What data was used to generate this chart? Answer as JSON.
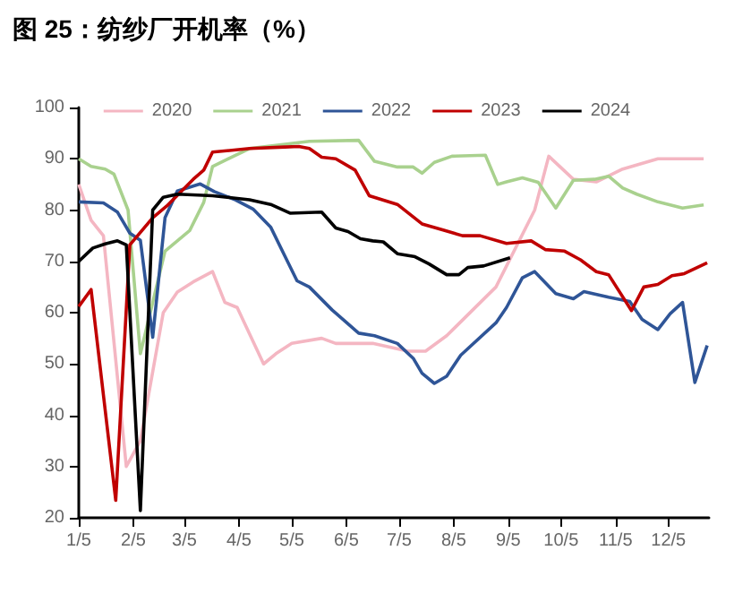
{
  "chart_data": {
    "type": "line",
    "title": "图 25：纺纱厂开机率（%）",
    "legend": "top",
    "marker": "none",
    "xlim": [
      "--01-05",
      "--12-28"
    ],
    "xticks": [
      {
        "value": "--01-05",
        "label": "1/5"
      },
      {
        "value": "--02-05",
        "label": "2/5"
      },
      {
        "value": "--03-05",
        "label": "3/5"
      },
      {
        "value": "--04-05",
        "label": "4/5"
      },
      {
        "value": "--05-05",
        "label": "5/5"
      },
      {
        "value": "--06-05",
        "label": "6/5"
      },
      {
        "value": "--07-05",
        "label": "7/5"
      },
      {
        "value": "--08-05",
        "label": "8/5"
      },
      {
        "value": "--09-05",
        "label": "9/5"
      },
      {
        "value": "--10-05",
        "label": "10/5"
      },
      {
        "value": "--11-05",
        "label": "11/5"
      },
      {
        "value": "--12-05",
        "label": "12/5"
      }
    ],
    "ylim": [
      20,
      100
    ],
    "yticks": [
      20,
      30,
      40,
      50,
      60,
      70,
      80,
      90,
      100
    ],
    "series": [
      {
        "name": "2020",
        "color": "#f4b6c2",
        "x": [
          "--01-05",
          "--01-12",
          "--01-19",
          "--02-01",
          "--02-09",
          "--02-22",
          "--03-01",
          "--03-10",
          "--03-21",
          "--03-28",
          "--04-04",
          "--04-19",
          "--04-26",
          "--05-05",
          "--05-22",
          "--05-30",
          "--06-20",
          "--07-10",
          "--07-20",
          "--08-01",
          "--08-29",
          "--09-20",
          "--09-28",
          "--10-12",
          "--10-25",
          "--11-09",
          "--11-29",
          "--12-25"
        ],
        "values": [
          85,
          78,
          75,
          30,
          35,
          60,
          64,
          66,
          68,
          62,
          61,
          50,
          52,
          54,
          55,
          54,
          54,
          52.5,
          52.5,
          55.5,
          65,
          80,
          90.5,
          86,
          85.5,
          88,
          90,
          90
        ]
      },
      {
        "name": "2021",
        "color": "#a9d18e",
        "x": [
          "--01-05",
          "--01-12",
          "--01-20",
          "--01-25",
          "--02-02",
          "--02-09",
          "--02-23",
          "--03-08",
          "--03-16",
          "--03-21",
          "--04-11",
          "--05-15",
          "--06-12",
          "--06-21",
          "--07-04",
          "--07-13",
          "--07-18",
          "--07-25",
          "--08-04",
          "--08-23",
          "--08-30",
          "--09-04",
          "--09-13",
          "--09-22",
          "--10-02",
          "--10-12",
          "--10-24",
          "--11-01",
          "--11-09",
          "--11-17",
          "--11-29",
          "--12-13",
          "--12-25"
        ],
        "values": [
          90,
          88.5,
          88,
          87,
          80,
          52,
          72,
          76,
          81.5,
          88.5,
          92,
          93.4,
          93.6,
          89.5,
          88.4,
          88.4,
          87.2,
          89.3,
          90.5,
          90.7,
          85,
          85.5,
          86.3,
          85.4,
          80.4,
          85.8,
          86,
          86.6,
          84.3,
          83.1,
          81.6,
          80.4,
          81
        ]
      },
      {
        "name": "2022",
        "color": "#2f5597",
        "x": [
          "--01-05",
          "--01-19",
          "--01-27",
          "--02-03",
          "--02-09",
          "--02-16",
          "--02-23",
          "--03-01",
          "--03-14",
          "--03-22",
          "--04-03",
          "--04-13",
          "--04-23",
          "--05-03",
          "--05-08",
          "--05-15",
          "--05-28",
          "--06-04",
          "--06-12",
          "--06-21",
          "--07-04",
          "--07-13",
          "--07-18",
          "--07-25",
          "--08-01",
          "--08-09",
          "--08-29",
          "--09-04",
          "--09-13",
          "--09-20",
          "--10-02",
          "--10-12",
          "--10-18",
          "--11-01",
          "--11-13",
          "--11-20",
          "--11-29",
          "--12-06",
          "--12-13",
          "--12-20",
          "--12-27"
        ],
        "values": [
          81.6,
          81.4,
          79.6,
          75.5,
          74.1,
          55.2,
          78.5,
          83.7,
          85.1,
          83.6,
          82,
          80.2,
          76.7,
          69.7,
          66.2,
          65,
          60.5,
          58.4,
          56,
          55.5,
          54,
          51.1,
          48.2,
          46.2,
          47.6,
          51.7,
          58,
          61,
          66.8,
          68,
          63.7,
          62.7,
          64.1,
          63,
          62.2,
          58.7,
          56.7,
          59.8,
          62,
          46.4,
          53.6
        ]
      },
      {
        "name": "2023",
        "color": "#c00000",
        "x": [
          "--01-05",
          "--01-12",
          "--01-26",
          "--02-03",
          "--02-16",
          "--02-24",
          "--03-10",
          "--03-16",
          "--03-21",
          "--04-11",
          "--05-01",
          "--05-09",
          "--05-15",
          "--05-22",
          "--05-30",
          "--06-10",
          "--06-18",
          "--07-04",
          "--07-18",
          "--07-30",
          "--08-10",
          "--08-20",
          "--09-04",
          "--09-18",
          "--09-26",
          "--10-07",
          "--10-16",
          "--10-25",
          "--11-01",
          "--11-14",
          "--11-21",
          "--11-29",
          "--12-07",
          "--12-14",
          "--12-27"
        ],
        "values": [
          61.2,
          64.5,
          23.4,
          73.2,
          78.5,
          80.8,
          86,
          87.8,
          91.3,
          92,
          92.3,
          92.4,
          92,
          90.3,
          90,
          87.8,
          82.8,
          81.1,
          77.3,
          76.1,
          75,
          75,
          73.5,
          74,
          72.3,
          72,
          70.3,
          68,
          67.4,
          60.4,
          65,
          65.5,
          67.2,
          67.6,
          69.7
        ]
      },
      {
        "name": "2024",
        "color": "#000000",
        "x": [
          "--01-05",
          "--01-13",
          "--01-20",
          "--01-27",
          "--02-01",
          "--02-09",
          "--02-16",
          "--02-22",
          "--03-01",
          "--03-21",
          "--04-11",
          "--04-23",
          "--05-04",
          "--05-22",
          "--05-30",
          "--06-06",
          "--06-13",
          "--06-20",
          "--06-26",
          "--07-04",
          "--07-14",
          "--07-22",
          "--08-01",
          "--08-08",
          "--08-13",
          "--08-22",
          "--09-06"
        ],
        "values": [
          70,
          72.6,
          73.4,
          74,
          73.2,
          21.4,
          80,
          82.5,
          83.1,
          82.8,
          82,
          81.1,
          79.4,
          79.6,
          76.5,
          75.8,
          74.4,
          74,
          73.8,
          71.5,
          70.9,
          69.5,
          67.4,
          67.4,
          68.8,
          69.1,
          70.7
        ]
      }
    ]
  }
}
